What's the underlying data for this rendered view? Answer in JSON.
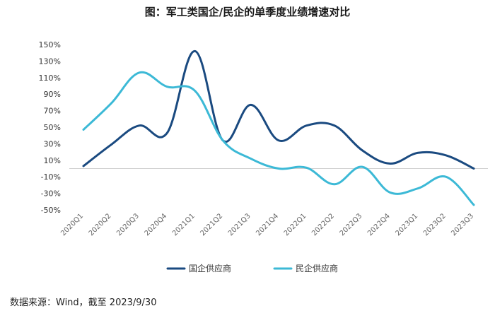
{
  "title": "图：军工类国企/民企的单季度业绩增速对比",
  "source": "数据来源：Wind，截至 2023/9/30",
  "chart_data": {
    "type": "line",
    "title": "图：军工类国企/民企的单季度业绩增速对比",
    "categories": [
      "2020Q1",
      "2020Q2",
      "2020Q3",
      "2020Q4",
      "2021Q1",
      "2021Q2",
      "2021Q3",
      "2021Q4",
      "2022Q1",
      "2022Q2",
      "2022Q3",
      "2022Q4",
      "2023Q1",
      "2023Q2",
      "2023Q3"
    ],
    "series": [
      {
        "name": "国企供应商",
        "color": "#1a4a80",
        "values": [
          3,
          29,
          52,
          43,
          142,
          34,
          77,
          34,
          52,
          52,
          22,
          6,
          19,
          16,
          0
        ]
      },
      {
        "name": "民企供应商",
        "color": "#3cb9d6",
        "values": [
          47,
          79,
          116,
          99,
          94,
          34,
          12,
          0,
          1,
          -19,
          2,
          -29,
          -24,
          -10,
          -44
        ]
      }
    ],
    "y_ticks": [
      "150%",
      "130%",
      "110%",
      "90%",
      "70%",
      "50%",
      "30%",
      "10%",
      "-10%",
      "-30%",
      "-50%"
    ],
    "ylim": [
      -50,
      150
    ],
    "xlabel": "",
    "ylabel": "",
    "legend_position": "bottom"
  }
}
